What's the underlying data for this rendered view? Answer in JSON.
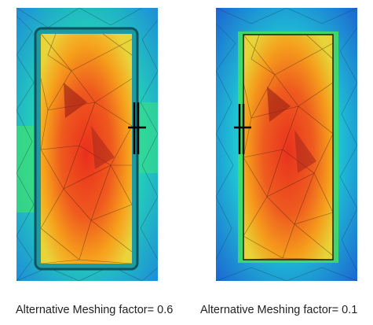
{
  "figures": [
    {
      "caption": "Alternative Meshing factor= 0.6"
    },
    {
      "caption": "Alternative Meshing factor= 0.1"
    }
  ],
  "colors": {
    "hot_core": "#e8321e",
    "warm": "#f79a1c",
    "mid": "#e9d23a",
    "cool": "#3fe07a",
    "cold": "#1fc8d8",
    "cold_edge": "#1e74d6",
    "mesh_line": "#2a1808",
    "probe": "#000000"
  },
  "icons": [
    "mesh-edge-lines",
    "probe-cross-marker"
  ]
}
